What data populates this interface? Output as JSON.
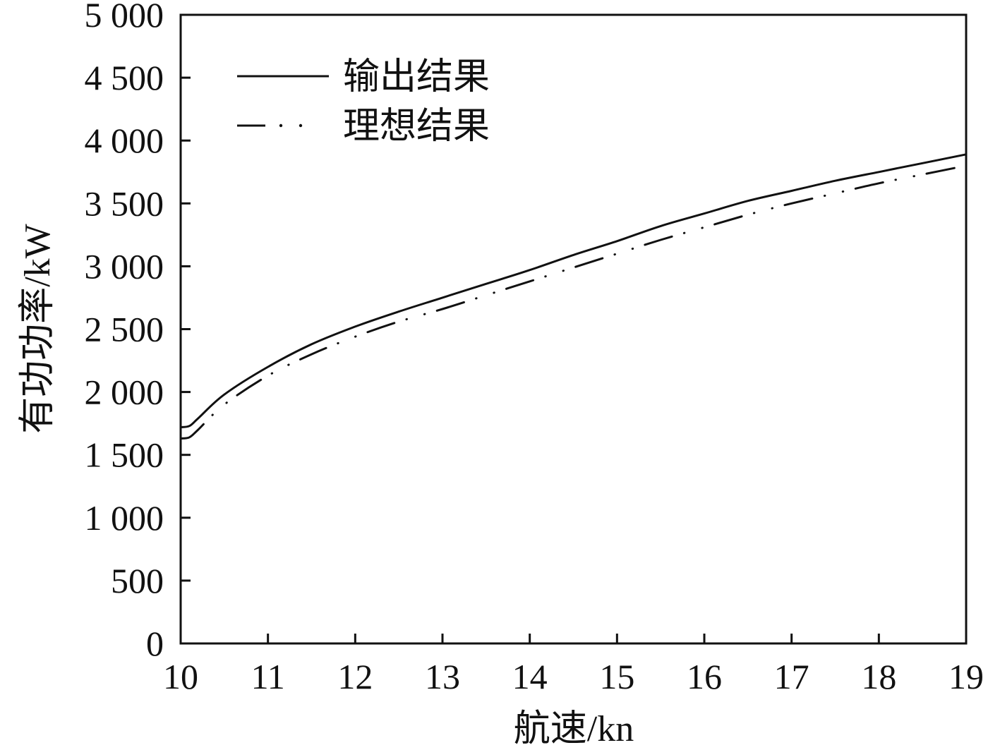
{
  "chart_data": {
    "type": "line",
    "title": "",
    "xlabel": "航速/kn",
    "ylabel": "有功功率/kW",
    "xlim": [
      10,
      19
    ],
    "ylim": [
      0,
      5000
    ],
    "x_ticks": [
      10,
      11,
      12,
      13,
      14,
      15,
      16,
      17,
      18,
      19
    ],
    "y_ticks": [
      0,
      500,
      1000,
      1500,
      2000,
      2500,
      3000,
      3500,
      4000,
      4500,
      5000
    ],
    "x_tick_labels": [
      "10",
      "11",
      "12",
      "13",
      "14",
      "15",
      "16",
      "17",
      "18",
      "19"
    ],
    "y_tick_labels": [
      "0",
      "500",
      "1 000",
      "1 500",
      "2 000",
      "2 500",
      "3 000",
      "3 500",
      "4 000",
      "4 500",
      "5 000"
    ],
    "grid": false,
    "legend_position": "top-left",
    "series": [
      {
        "name": "输出结果",
        "style": "solid",
        "color": "#111111",
        "x": [
          10.0,
          10.1,
          10.2,
          10.5,
          11.0,
          11.5,
          12.0,
          12.5,
          13.0,
          13.5,
          14.0,
          14.5,
          15.0,
          15.5,
          16.0,
          16.5,
          17.0,
          17.5,
          18.0,
          18.5,
          19.0
        ],
        "y": [
          1720,
          1730,
          1790,
          1980,
          2200,
          2380,
          2520,
          2640,
          2750,
          2860,
          2970,
          3090,
          3200,
          3320,
          3420,
          3520,
          3600,
          3680,
          3750,
          3820,
          3890
        ]
      },
      {
        "name": "理想结果",
        "style": "dash-dot-dot",
        "color": "#111111",
        "x": [
          10.0,
          10.1,
          10.2,
          10.5,
          11.0,
          11.5,
          12.0,
          12.5,
          13.0,
          13.5,
          14.0,
          14.5,
          15.0,
          15.5,
          16.0,
          16.5,
          17.0,
          17.5,
          18.0,
          18.5,
          19.0
        ],
        "y": [
          1630,
          1640,
          1700,
          1900,
          2130,
          2300,
          2440,
          2560,
          2660,
          2770,
          2880,
          2990,
          3100,
          3210,
          3310,
          3410,
          3500,
          3580,
          3660,
          3730,
          3800
        ]
      }
    ]
  }
}
